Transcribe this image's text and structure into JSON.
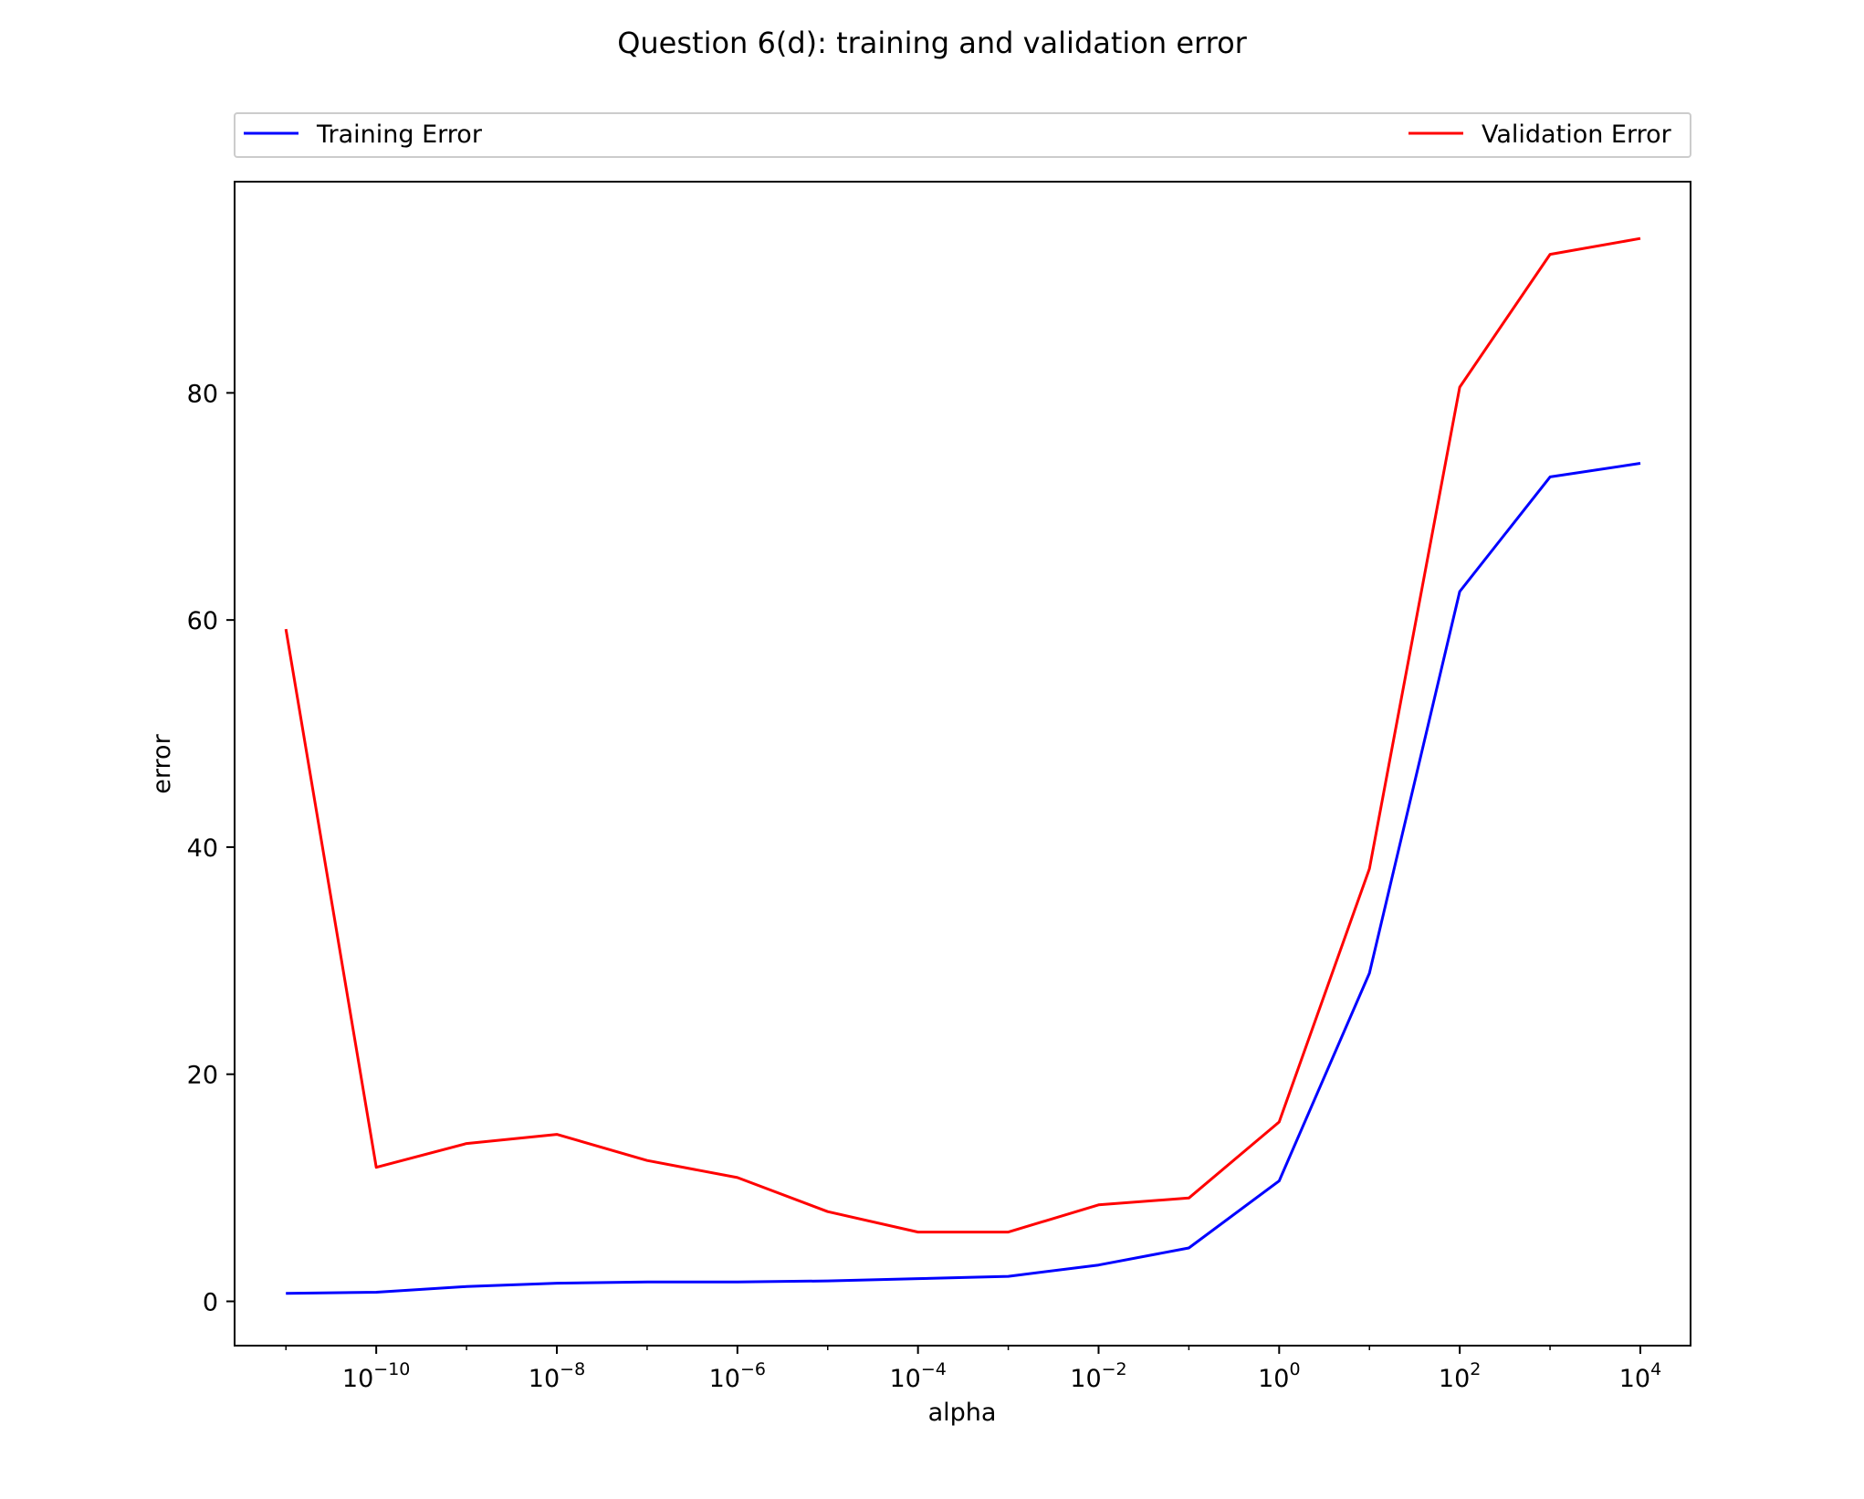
{
  "chart_data": {
    "type": "line",
    "title": "Question 6(d): training and validation error",
    "xlabel": "alpha",
    "ylabel": "error",
    "xscale": "log",
    "x": [
      1e-11,
      1e-10,
      1e-09,
      1e-08,
      1e-07,
      1e-06,
      1e-05,
      0.0001,
      0.001,
      0.01,
      0.1,
      1.0,
      10.0,
      100.0,
      1000.0,
      10000.0
    ],
    "xlim": [
      2.7e-12,
      36000.0
    ],
    "ylim": [
      -3.9,
      98.6
    ],
    "x_ticks": [
      {
        "value": 1e-10,
        "base": "10",
        "exp": "−10"
      },
      {
        "value": 1e-08,
        "base": "10",
        "exp": "−8"
      },
      {
        "value": 1e-06,
        "base": "10",
        "exp": "−6"
      },
      {
        "value": 0.0001,
        "base": "10",
        "exp": "−4"
      },
      {
        "value": 0.01,
        "base": "10",
        "exp": "−2"
      },
      {
        "value": 1.0,
        "base": "10",
        "exp": "0"
      },
      {
        "value": 100.0,
        "base": "10",
        "exp": "2"
      },
      {
        "value": 10000.0,
        "base": "10",
        "exp": "4"
      }
    ],
    "y_ticks": [
      0,
      20,
      40,
      60,
      80
    ],
    "grid": false,
    "legend": {
      "placement": "top-outside",
      "mode": "expand"
    },
    "series": [
      {
        "name": "Training Error",
        "color": "#0000ff",
        "values": [
          0.7,
          0.8,
          1.3,
          1.6,
          1.7,
          1.7,
          1.8,
          2.0,
          2.2,
          3.2,
          4.7,
          10.6,
          28.9,
          62.5,
          72.6,
          73.8
        ]
      },
      {
        "name": "Validation Error",
        "color": "#ff0000",
        "values": [
          59.2,
          11.8,
          13.9,
          14.7,
          12.4,
          10.9,
          7.9,
          6.1,
          6.1,
          8.5,
          9.1,
          15.8,
          38.1,
          80.5,
          92.2,
          93.6
        ]
      }
    ]
  }
}
